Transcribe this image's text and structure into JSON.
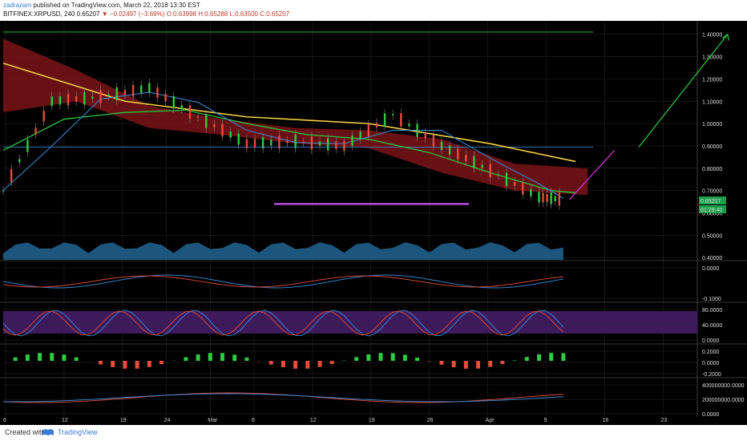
{
  "header": {
    "user": "zadrazam",
    "published": "published on TradingView.com, March 22, 2018 13:30 EST",
    "symbol": "BITFINEX:XRPUSD, 240",
    "last": "0.65207",
    "change": "▼ −0.02497 (−3.69%)",
    "open": "O:0.63998",
    "high": "H:0.65288",
    "low": "L:0.63500",
    "close": "C:0.65207"
  },
  "footer": {
    "created_with": "Created with",
    "brand": "TradingView"
  },
  "colors": {
    "background": "#000000",
    "grid": "#2a2a2a",
    "ma_yellow": "#f4d03f",
    "ma_green": "#27c93f",
    "ma_blue": "#3a8dde",
    "cloud": "#7a1418",
    "arrow_green": "#2ecc40",
    "arrow_magenta": "#d633d6",
    "support": "#b44bd6",
    "volume": "#1f5f8b",
    "stoch_band": "#3d1a5c",
    "price_label": "#1e9e4a"
  },
  "chart_data": {
    "type": "line",
    "title": "BITFINEX:XRPUSD, 240",
    "x_ticks": [
      "6",
      "12",
      "19",
      "24",
      "Mar",
      "6",
      "12",
      "19",
      "26",
      "Apr",
      "9",
      "16",
      "23"
    ],
    "price_axis": {
      "ticks": [
        "1.40000",
        "1.30000",
        "1.20000",
        "1.10000",
        "1.00000",
        "0.90000",
        "0.80000",
        "0.70000",
        "0.60000",
        "0.50000",
        "0.40000"
      ],
      "ylim": [
        0.39,
        1.46
      ],
      "last_price_label": "0.65207",
      "countdown_label": "01:29:40"
    },
    "series": [
      {
        "name": "price",
        "x": [
          0,
          4,
          8,
          12,
          16,
          20,
          24,
          28,
          32,
          36,
          40,
          44,
          46
        ],
        "values": [
          0.7,
          1.1,
          1.12,
          1.16,
          1.03,
          0.91,
          0.92,
          0.9,
          1.04,
          0.9,
          0.79,
          0.67,
          0.66
        ]
      },
      {
        "name": "ma_yellow",
        "x": [
          0,
          10,
          20,
          30,
          40,
          47
        ],
        "values": [
          1.27,
          1.1,
          1.03,
          1.0,
          0.91,
          0.83
        ]
      },
      {
        "name": "ma_green",
        "x": [
          0,
          5,
          10,
          15,
          20,
          25,
          30,
          35,
          40,
          45,
          47
        ],
        "values": [
          0.88,
          1.02,
          1.05,
          1.06,
          1.0,
          0.95,
          0.93,
          0.87,
          0.78,
          0.7,
          0.69
        ]
      }
    ],
    "projection": {
      "support_level": 0.64,
      "blue_line_level": 0.895,
      "top_line_level": 1.41,
      "magenta_arrow_to": 0.88,
      "green_arrow_to": 1.4
    },
    "indicators": {
      "macd_ticks": [
        "0.0000",
        "-0.1000"
      ],
      "stoch_ticks": [
        "80.0000",
        "40.0000",
        "0.0000"
      ],
      "momentum_ticks": [
        "0.2000",
        "0.0000",
        "-0.2000"
      ],
      "obv_ticks": [
        "400000000.0000",
        "200000000.0000",
        "0.0000"
      ]
    }
  }
}
